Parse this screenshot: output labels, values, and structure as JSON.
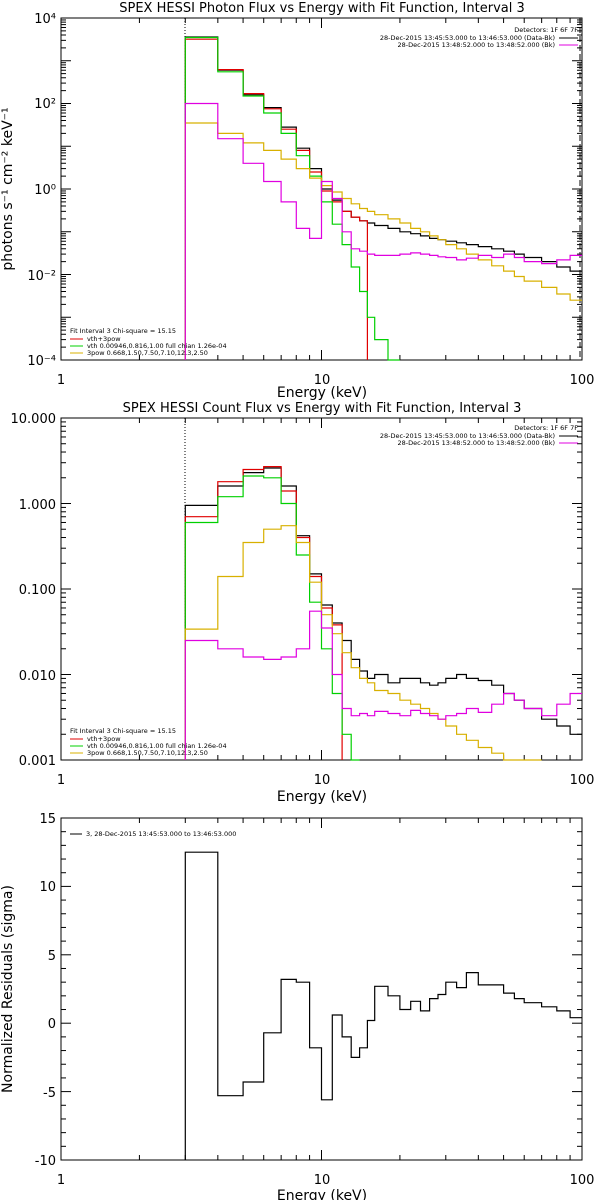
{
  "chart_data": [
    {
      "type": "line",
      "title": "SPEX HESSI Photon Flux vs Energy with Fit Function, Interval 3",
      "xlabel": "Energy (keV)",
      "ylabel": "photons s⁻¹ cm⁻² keV⁻¹",
      "xscale": "log",
      "yscale": "log",
      "xlim": [
        1,
        100
      ],
      "ylim": [
        0.0001,
        10000
      ],
      "xticks": [
        "1",
        "10",
        "100"
      ],
      "yticks": [
        "10⁻⁴",
        "10⁻²",
        "10⁰",
        "10²",
        "10⁴"
      ],
      "legend_top": {
        "header": "Detectors: 1F 6F 7F",
        "entries": [
          {
            "label": "28-Dec-2015 13:45:53.000 to 13:46:53.000 (Data-Bk)",
            "color": "#000000"
          },
          {
            "label": "28-Dec-2015 13:48:52.000 to 13:48:52.000 (Bk)",
            "color": "#e000e0"
          }
        ]
      },
      "legend_bottom": {
        "header": "Fit Interval 3   Chi-square = 15.15",
        "entries": [
          {
            "label": "vth+3pow",
            "color": "#e00000"
          },
          {
            "label": "vth 0.00946,0.816,1.00   full chian 1.26e-04",
            "color": "#00d000"
          },
          {
            "label": "3pow 0.668,1.50,7.50,7.10,12.3,2.50",
            "color": "#d8b000"
          }
        ]
      },
      "bin_edges": [
        3,
        4,
        5,
        6,
        7,
        8,
        9,
        10,
        11,
        12,
        13,
        14,
        15,
        16,
        18,
        20,
        22,
        24,
        26,
        28,
        30,
        33,
        36,
        40,
        45,
        50,
        55,
        60,
        70,
        80,
        90,
        100
      ],
      "series": [
        {
          "name": "",
          "color": "#000000",
          "values": [
            3600,
            600,
            160,
            80,
            28,
            9,
            3,
            1.0,
            0.55,
            0.3,
            0.22,
            0.18,
            0.16,
            0.14,
            0.12,
            0.1,
            0.09,
            0.08,
            0.07,
            0.065,
            0.06,
            0.055,
            0.05,
            0.045,
            0.04,
            0.035,
            0.03,
            0.025,
            0.02,
            0.015,
            0.012
          ]
        },
        {
          "name": "",
          "color": "#e00000",
          "values": [
            3200,
            620,
            170,
            75,
            25,
            8,
            2.5,
            0.9,
            0.5,
            0.3,
            0.22,
            0.18
          ]
        },
        {
          "name": "",
          "color": "#00d000",
          "values": [
            3500,
            550,
            150,
            60,
            20,
            6,
            2,
            0.5,
            0.15,
            0.05,
            0.015,
            0.004,
            0.001,
            0.0003,
            5e-05
          ]
        },
        {
          "name": "",
          "color": "#d8b000",
          "values": [
            35,
            20,
            12,
            8,
            5,
            3,
            1.8,
            1.2,
            0.85,
            0.6,
            0.45,
            0.35,
            0.3,
            0.25,
            0.2,
            0.16,
            0.12,
            0.1,
            0.08,
            0.065,
            0.05,
            0.04,
            0.03,
            0.022,
            0.016,
            0.012,
            0.009,
            0.007,
            0.005,
            0.0035,
            0.0025
          ]
        },
        {
          "name": "",
          "color": "#e000e0",
          "values": [
            100,
            15,
            4,
            1.5,
            0.5,
            0.12,
            0.07,
            1.5,
            0.6,
            0.1,
            0.04,
            0.035,
            0.03,
            0.028,
            0.028,
            0.03,
            0.032,
            0.03,
            0.028,
            0.026,
            0.025,
            0.022,
            0.024,
            0.028,
            0.025,
            0.03,
            0.025,
            0.02,
            0.018,
            0.022,
            0.028
          ]
        }
      ]
    },
    {
      "type": "line",
      "title": "SPEX HESSI Count Flux vs Energy with Fit Function, Interval 3",
      "xlabel": "Energy (keV)",
      "ylabel": "",
      "xscale": "log",
      "yscale": "log",
      "xlim": [
        1,
        100
      ],
      "ylim": [
        0.001,
        10
      ],
      "xticks": [
        "1",
        "10",
        "100"
      ],
      "yticks": [
        "0.001",
        "0.010",
        "0.100",
        "1.000",
        "10.000"
      ],
      "legend_top": {
        "header": "Detectors: 1F 6F 7F",
        "entries": [
          {
            "label": "28-Dec-2015 13:45:53.000 to 13:46:53.000 (Data-Bk)",
            "color": "#000000"
          },
          {
            "label": "28-Dec-2015 13:48:52.000 to 13:48:52.000 (Bk)",
            "color": "#e000e0"
          }
        ]
      },
      "legend_bottom": {
        "header": "Fit Interval 3   Chi-square = 15.15",
        "entries": [
          {
            "label": "vth+3pow",
            "color": "#e00000"
          },
          {
            "label": "vth 0.00946,0.816,1.00   full chian 1.26e-04",
            "color": "#00d000"
          },
          {
            "label": "3pow 0.668,1.50,7.50,7.10,12.3,2.50",
            "color": "#d8b000"
          }
        ]
      },
      "bin_edges": [
        3,
        4,
        5,
        6,
        7,
        8,
        9,
        10,
        11,
        12,
        13,
        14,
        15,
        16,
        18,
        20,
        22,
        24,
        26,
        28,
        30,
        33,
        36,
        40,
        45,
        50,
        55,
        60,
        70,
        80,
        90,
        100
      ],
      "series": [
        {
          "name": "",
          "color": "#000000",
          "values": [
            0.95,
            1.6,
            2.3,
            2.6,
            1.6,
            0.42,
            0.15,
            0.065,
            0.04,
            0.025,
            0.015,
            0.011,
            0.009,
            0.01,
            0.008,
            0.009,
            0.009,
            0.008,
            0.0075,
            0.008,
            0.009,
            0.01,
            0.009,
            0.0085,
            0.0075,
            0.006,
            0.005,
            0.004,
            0.003,
            0.0025,
            0.002
          ]
        },
        {
          "name": "",
          "color": "#e00000",
          "values": [
            0.7,
            1.8,
            2.5,
            2.7,
            1.4,
            0.4,
            0.14,
            0.06,
            0.038
          ]
        },
        {
          "name": "",
          "color": "#00d000",
          "values": [
            0.6,
            1.2,
            2.1,
            2.0,
            1.0,
            0.25,
            0.07,
            0.02,
            0.006,
            0.002,
            0.0008
          ]
        },
        {
          "name": "",
          "color": "#d8b000",
          "values": [
            0.034,
            0.14,
            0.35,
            0.5,
            0.55,
            0.35,
            0.12,
            0.05,
            0.03,
            0.018,
            0.012,
            0.009,
            0.008,
            0.0065,
            0.006,
            0.005,
            0.0045,
            0.004,
            0.0035,
            0.003,
            0.0025,
            0.002,
            0.0017,
            0.0014,
            0.0012,
            0.001,
            0.0009,
            0.0008
          ]
        },
        {
          "name": "",
          "color": "#e000e0",
          "values": [
            0.025,
            0.02,
            0.016,
            0.015,
            0.016,
            0.02,
            0.055,
            0.035,
            0.01,
            0.004,
            0.0033,
            0.0035,
            0.0033,
            0.0037,
            0.0035,
            0.0033,
            0.0038,
            0.0035,
            0.0033,
            0.003,
            0.0033,
            0.0035,
            0.004,
            0.0036,
            0.0045,
            0.006,
            0.005,
            0.004,
            0.0033,
            0.0045,
            0.006
          ]
        }
      ]
    },
    {
      "type": "line",
      "title": "",
      "xlabel": "Energy (keV)",
      "ylabel": "Normalized Residuals (sigma)",
      "xscale": "log",
      "yscale": "linear",
      "xlim": [
        1,
        100
      ],
      "ylim": [
        -10,
        15
      ],
      "xticks": [
        "1",
        "10",
        "100"
      ],
      "yticks": [
        "-10",
        "-5",
        "0",
        "5",
        "10",
        "15"
      ],
      "legend": "3, 28-Dec-2015 13:45:53.000 to 13:46:53.000",
      "bin_edges": [
        3,
        4,
        5,
        6,
        7,
        8,
        9,
        10,
        11,
        12,
        13,
        14,
        15,
        16,
        18,
        20,
        22,
        24,
        26,
        28,
        30,
        33,
        36,
        40,
        45,
        50,
        55,
        60,
        70,
        80,
        90,
        100
      ],
      "series": [
        {
          "name": "",
          "color": "#000000",
          "values": [
            12.5,
            -5.3,
            -4.3,
            -0.7,
            3.2,
            3.0,
            -1.8,
            -5.6,
            0.6,
            -1.0,
            -2.5,
            -1.8,
            0.2,
            2.7,
            2.0,
            1.0,
            1.6,
            0.9,
            1.8,
            2.1,
            3.0,
            2.6,
            3.7,
            2.8,
            2.8,
            2.2,
            1.8,
            1.5,
            1.2,
            0.9,
            0.4
          ]
        }
      ]
    }
  ]
}
